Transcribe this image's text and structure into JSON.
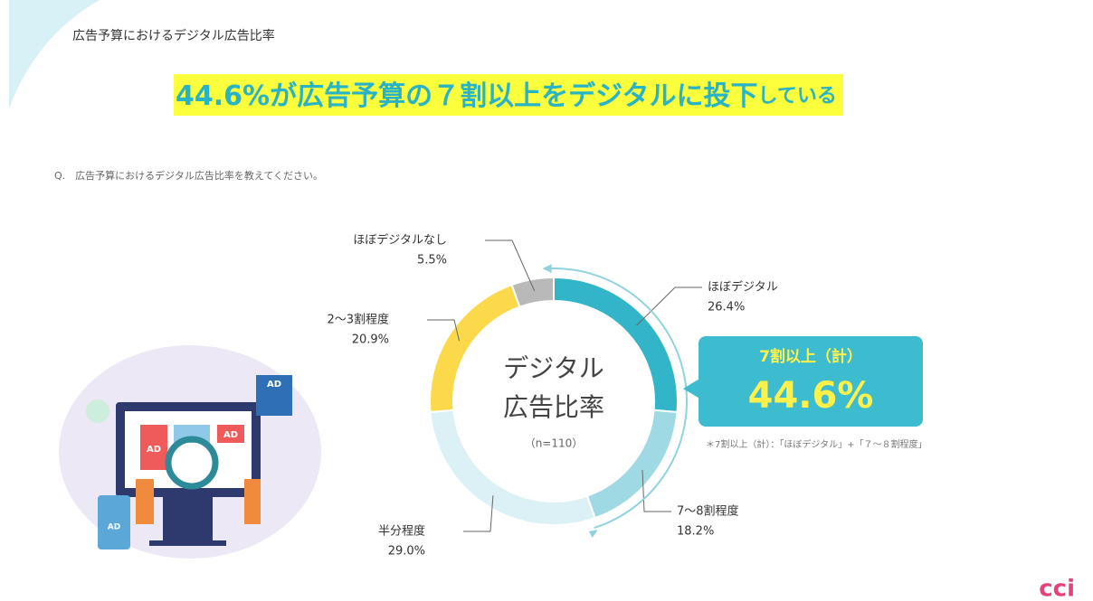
{
  "header": "広告予算におけるデジタル広告比率",
  "headline": {
    "highlight": "44.6%が広告予算の７割以上をデジタルに投下",
    "rest": "している"
  },
  "question": "Q.　広告予算におけるデジタル広告比率を教えてください。",
  "chart_data": {
    "type": "donut",
    "center_text": [
      "デジタル",
      "広告比率"
    ],
    "center_note": "（n=110）",
    "categories": [
      "ほぼデジタル",
      "7～8割程度",
      "半分程度",
      "2～3割程度",
      "ほぼデジタルなし"
    ],
    "values": [
      26.4,
      18.2,
      29.0,
      20.9,
      5.5
    ],
    "value_labels": [
      "26.4%",
      "18.2%",
      "29.0%",
      "20.9%",
      "5.5%"
    ],
    "colors": [
      "#33b5c9",
      "#9fdae4",
      "#dcf1f5",
      "#fbd94b",
      "#b9b9b9"
    ]
  },
  "callout": {
    "title": "7割以上（計）",
    "value": "44.6%",
    "note": "＊7割以上（計）：「ほぼデジタル」+「７～８割程度」"
  },
  "illustration": {
    "badges": [
      "AD",
      "AD",
      "AD",
      "AD"
    ]
  },
  "logo": "cci"
}
